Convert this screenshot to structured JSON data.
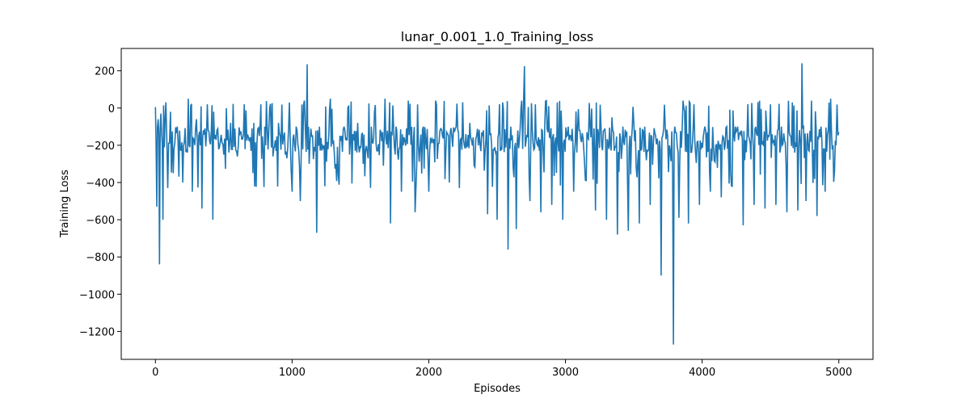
{
  "chart_data": {
    "type": "line",
    "title": "lunar_0.001_1.0_Training_loss",
    "xlabel": "Episodes",
    "ylabel": "Training Loss",
    "xlim": [
      -250,
      5250
    ],
    "ylim": [
      -1350,
      320
    ],
    "x_ticks": [
      0,
      1000,
      2000,
      3000,
      4000,
      5000
    ],
    "x_tick_labels": [
      "0",
      "1000",
      "2000",
      "3000",
      "4000",
      "5000"
    ],
    "y_ticks": [
      200,
      0,
      -200,
      -400,
      -600,
      -800,
      -1000,
      -1200
    ],
    "y_tick_labels": [
      "200",
      "0",
      "−200",
      "−400",
      "−600",
      "−800",
      "−1000",
      "−1200"
    ],
    "grid": false,
    "series": [
      {
        "color": "#1f77b4",
        "x": [
          0,
          10,
          20,
          30,
          40,
          55,
          70,
          90,
          110,
          130,
          160,
          200,
          240,
          270,
          300,
          340,
          380,
          420,
          450,
          500,
          550,
          600,
          650,
          700,
          720,
          760,
          800,
          860,
          900,
          950,
          980,
          1000,
          1030,
          1060,
          1090,
          1110,
          1125,
          1150,
          1180,
          1200,
          1240,
          1280,
          1320,
          1380,
          1420,
          1480,
          1520,
          1580,
          1620,
          1680,
          1720,
          1760,
          1800,
          1850,
          1900,
          1960,
          2000,
          2050,
          2100,
          2150,
          2200,
          2260,
          2300,
          2350,
          2400,
          2430,
          2460,
          2500,
          2540,
          2580,
          2600,
          2640,
          2680,
          2700,
          2740,
          2780,
          2820,
          2860,
          2900,
          2940,
          2980,
          3020,
          3060,
          3100,
          3140,
          3180,
          3220,
          3260,
          3300,
          3340,
          3380,
          3420,
          3460,
          3500,
          3540,
          3580,
          3620,
          3660,
          3700,
          3730,
          3760,
          3790,
          3800,
          3830,
          3860,
          3900,
          3940,
          3980,
          4020,
          4060,
          4100,
          4140,
          4180,
          4220,
          4260,
          4300,
          4340,
          4380,
          4420,
          4460,
          4500,
          4540,
          4580,
          4620,
          4660,
          4700,
          4730,
          4760,
          4800,
          4840,
          4870,
          4900,
          4940,
          4980,
          5000
        ],
        "values": [
          5,
          -530,
          -60,
          -840,
          -30,
          -600,
          -80,
          -430,
          -20,
          -350,
          -100,
          -400,
          50,
          -450,
          -60,
          -540,
          20,
          -600,
          -120,
          -250,
          -80,
          -260,
          20,
          -230,
          -80,
          -150,
          -100,
          -260,
          -80,
          -250,
          30,
          -450,
          -100,
          -500,
          40,
          235,
          -300,
          -150,
          -670,
          -100,
          -420,
          50,
          -300,
          -100,
          -250,
          -80,
          -300,
          -100,
          -230,
          50,
          -620,
          -100,
          -450,
          40,
          -560,
          -100,
          -450,
          40,
          -150,
          -400,
          -100,
          -200,
          -80,
          -150,
          -120,
          -570,
          -200,
          -600,
          30,
          -760,
          -100,
          -650,
          40,
          225,
          -500,
          20,
          -560,
          40,
          -520,
          30,
          -600,
          -100,
          -450,
          -120,
          -300,
          -100,
          -550,
          -100,
          -600,
          -50,
          -680,
          -100,
          -660,
          -80,
          -620,
          -100,
          -520,
          -150,
          -900,
          -100,
          -200,
          -1270,
          -100,
          -590,
          40,
          -620,
          20,
          -520,
          -100,
          -450,
          -200,
          -480,
          -100,
          -420,
          -100,
          -630,
          -150,
          -520,
          40,
          -540,
          20,
          -520,
          -100,
          -560,
          30,
          -550,
          240,
          -500,
          40,
          -580,
          -100,
          -450,
          50,
          -200,
          -130
        ]
      }
    ]
  }
}
